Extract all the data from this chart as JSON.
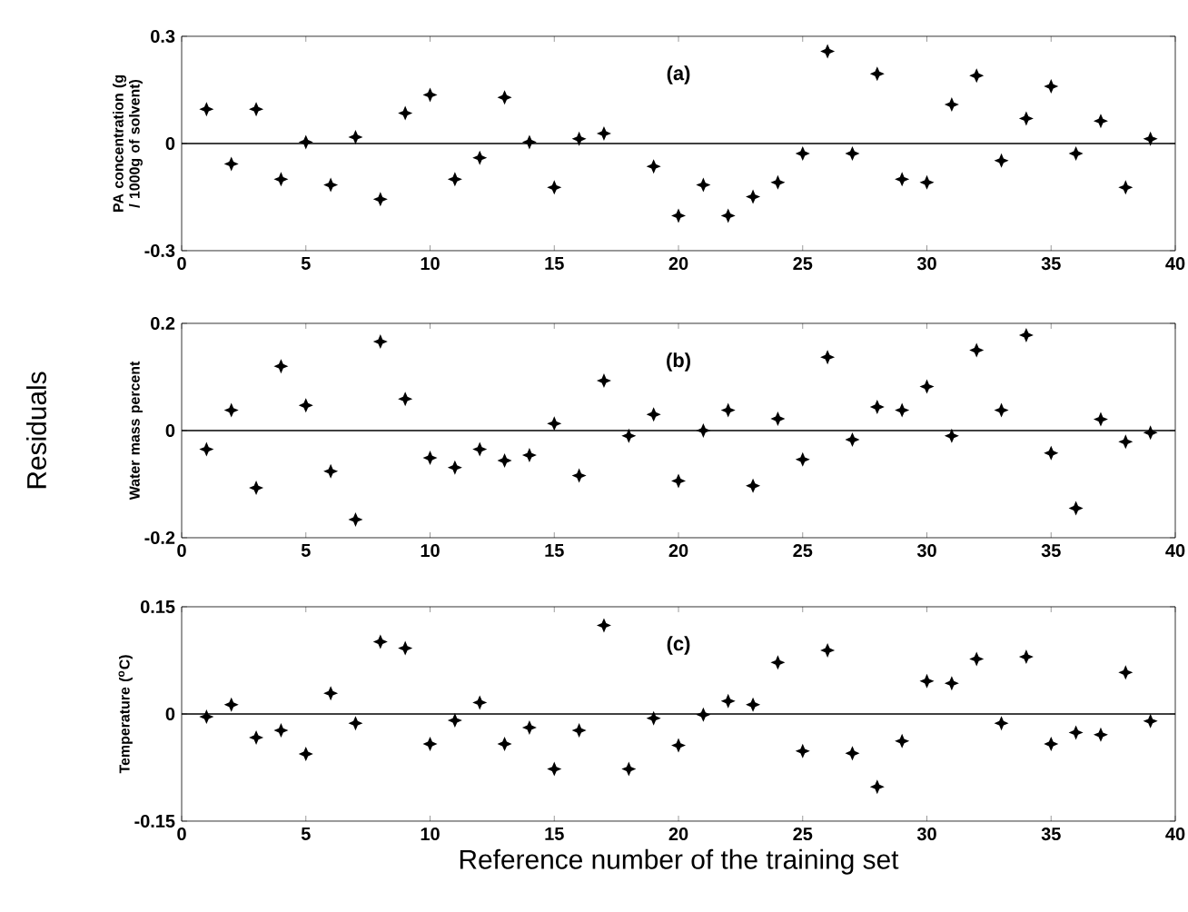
{
  "chart_data": [
    {
      "type": "scatter",
      "ylabel": "PA concentration (g / 1000g of solvent)",
      "annotations": [
        "(a)"
      ],
      "marker": "star",
      "grid": false,
      "x": [
        1,
        2,
        3,
        4,
        5,
        6,
        7,
        8,
        9,
        10,
        11,
        12,
        13,
        14,
        15,
        16,
        17,
        18,
        19,
        20,
        21,
        22,
        23,
        24,
        25,
        26,
        27,
        28,
        29,
        30,
        31,
        32,
        33,
        34,
        35,
        36,
        37,
        38,
        39
      ],
      "series": [
        {
          "color": "#000000",
          "values": [
            0.096,
            -0.057,
            0.096,
            -0.1,
            0.004,
            -0.116,
            0.018,
            -0.156,
            0.085,
            0.136,
            -0.1,
            -0.04,
            0.129,
            0.004,
            -0.123,
            0.013,
            0.028,
            null,
            -0.064,
            -0.202,
            -0.116,
            -0.202,
            -0.149,
            -0.109,
            -0.028,
            0.258,
            -0.028,
            0.195,
            -0.1,
            -0.109,
            0.109,
            0.19,
            -0.048,
            0.07,
            0.16,
            -0.028,
            0.063,
            -0.123,
            0.013
          ]
        }
      ],
      "xlim": [
        0,
        40
      ],
      "xticks": [
        0,
        5,
        10,
        15,
        20,
        25,
        30,
        35,
        40
      ],
      "ylim": [
        -0.3,
        0.3
      ],
      "yticks": [
        -0.3,
        0,
        0.3
      ],
      "ref_lines": [
        {
          "axis": "y",
          "value": 0,
          "color": "#000000"
        }
      ]
    },
    {
      "type": "scatter",
      "ylabel": "Water mass percent",
      "annotations": [
        "(b)",
        "Residuals"
      ],
      "marker": "star",
      "grid": false,
      "x": [
        1,
        2,
        3,
        4,
        5,
        6,
        7,
        8,
        9,
        10,
        11,
        12,
        13,
        14,
        15,
        16,
        17,
        18,
        19,
        20,
        21,
        22,
        23,
        24,
        25,
        26,
        27,
        28,
        29,
        30,
        31,
        32,
        33,
        34,
        35,
        36,
        37,
        38,
        39
      ],
      "series": [
        {
          "color": "#000000",
          "values": [
            -0.035,
            0.038,
            -0.107,
            0.12,
            0.047,
            -0.076,
            -0.166,
            0.166,
            0.059,
            -0.051,
            -0.069,
            -0.035,
            -0.056,
            -0.046,
            0.013,
            -0.084,
            0.093,
            -0.01,
            0.03,
            -0.094,
            0,
            0.038,
            -0.103,
            0.022,
            -0.054,
            0.137,
            -0.017,
            0.044,
            0.038,
            0.082,
            -0.01,
            0.15,
            0.038,
            0.178,
            -0.042,
            -0.145,
            0.021,
            -0.021,
            -0.004
          ]
        }
      ],
      "xlim": [
        0,
        40
      ],
      "xticks": [
        0,
        5,
        10,
        15,
        20,
        25,
        30,
        35,
        40
      ],
      "ylim": [
        -0.2,
        0.2
      ],
      "yticks": [
        -0.2,
        0,
        0.2
      ],
      "ref_lines": [
        {
          "axis": "y",
          "value": 0,
          "color": "#000000"
        }
      ]
    },
    {
      "type": "scatter",
      "ylabel": "Temperature ($^{o}$C)",
      "xlabel": "Reference number of the training set",
      "annotations": [
        "(c)"
      ],
      "marker": "star",
      "grid": false,
      "x": [
        1,
        2,
        3,
        4,
        5,
        6,
        7,
        8,
        9,
        10,
        11,
        12,
        13,
        14,
        15,
        16,
        17,
        18,
        19,
        20,
        21,
        22,
        23,
        24,
        25,
        26,
        27,
        28,
        29,
        30,
        31,
        32,
        33,
        34,
        35,
        36,
        37,
        38,
        39
      ],
      "series": [
        {
          "color": "#000000",
          "values": [
            -0.004,
            0.013,
            -0.033,
            -0.023,
            -0.056,
            0.029,
            -0.013,
            0.101,
            0.092,
            -0.042,
            -0.009,
            0.016,
            -0.042,
            -0.019,
            -0.077,
            -0.023,
            0.124,
            -0.077,
            -0.006,
            -0.044,
            -0.001,
            0.018,
            0.013,
            0.072,
            -0.052,
            0.089,
            -0.055,
            -0.102,
            -0.038,
            0.046,
            0.043,
            0.077,
            -0.013,
            0.08,
            -0.042,
            -0.026,
            -0.029,
            0.058,
            -0.01
          ]
        }
      ],
      "xlim": [
        0,
        40
      ],
      "xticks": [
        0,
        5,
        10,
        15,
        20,
        25,
        30,
        35,
        40
      ],
      "ylim": [
        -0.15,
        0.15
      ],
      "yticks": [
        -0.15,
        0,
        0.15
      ],
      "ref_lines": [
        {
          "axis": "y",
          "value": 0,
          "color": "#000000"
        }
      ]
    }
  ]
}
